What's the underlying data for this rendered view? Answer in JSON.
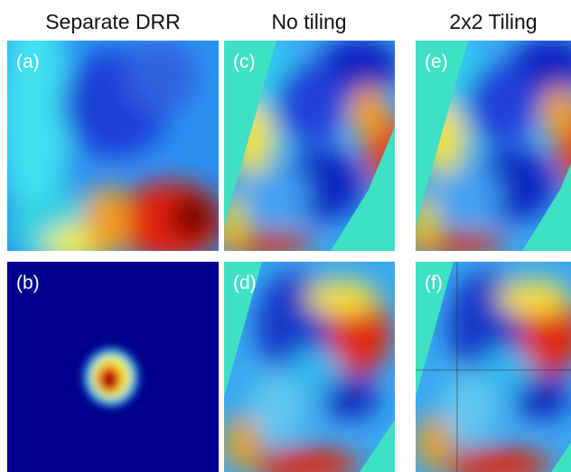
{
  "columns": [
    {
      "title": "Separate DRR",
      "panels": [
        "(a)",
        "(b)"
      ]
    },
    {
      "title": "No tiling",
      "panels": [
        "(c)",
        "(d)"
      ]
    },
    {
      "title": "2x2 Tiling",
      "panels": [
        "(e)",
        "(f)"
      ]
    }
  ]
}
